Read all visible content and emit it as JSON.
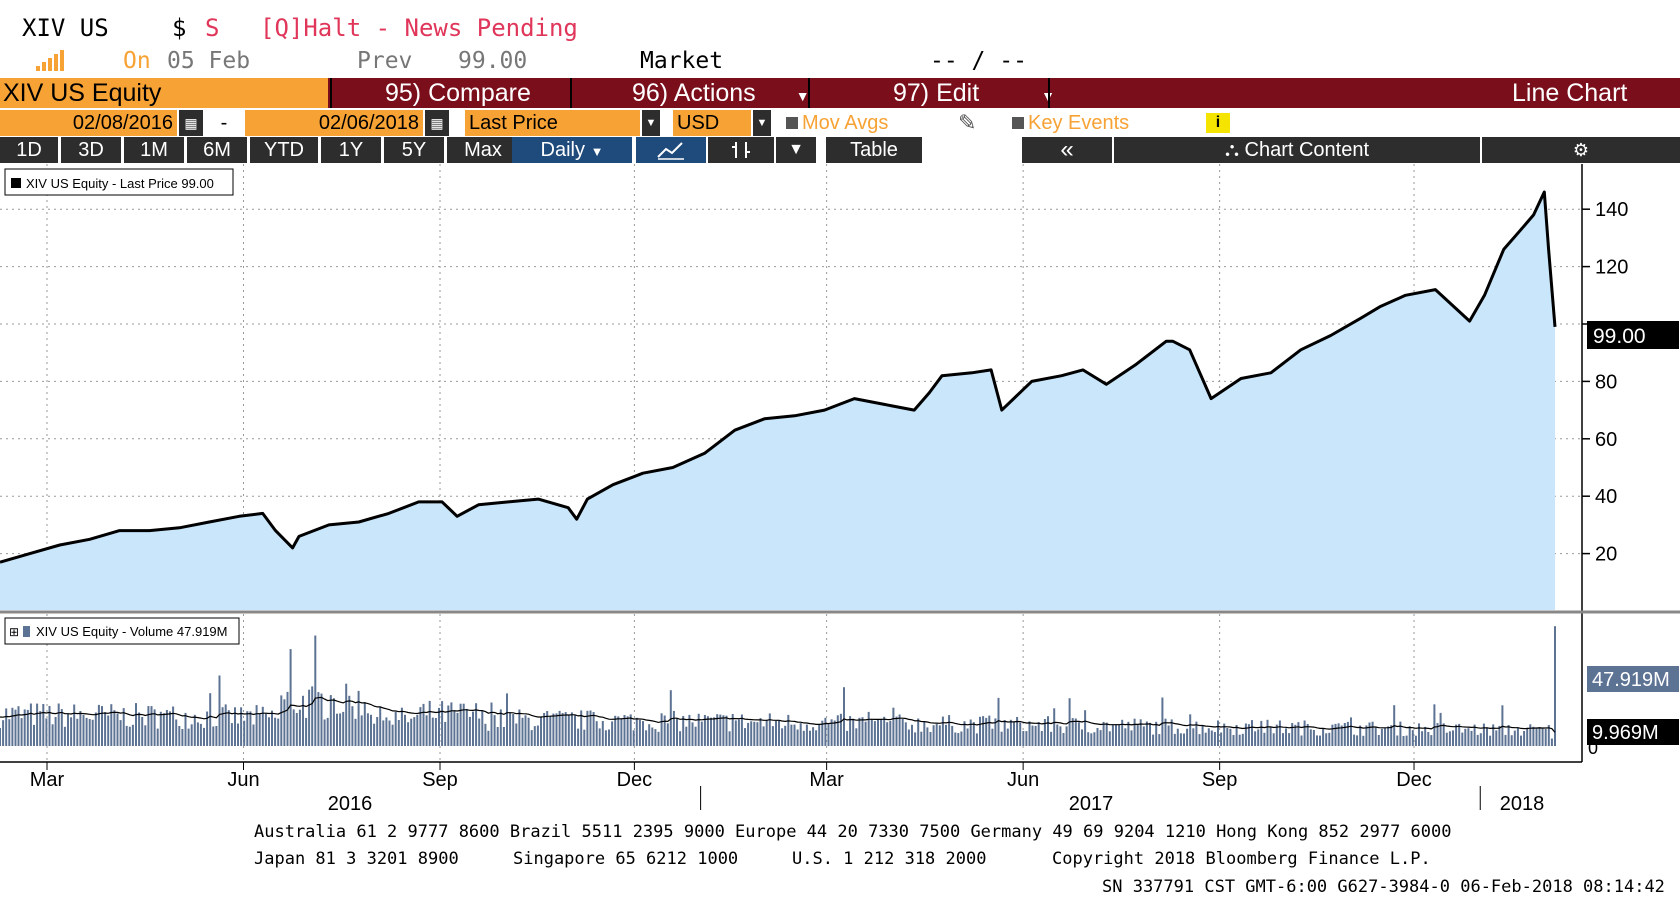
{
  "header": {
    "ticker": "XIV US",
    "currency_symbol": "$",
    "status_flag": "S",
    "halt_message": "[Q]Halt - News Pending",
    "on_label": "On",
    "on_date": "05 Feb",
    "prev_label": "Prev",
    "prev_value": "99.00",
    "market_label": "Market",
    "market_value": "-- / --"
  },
  "menubar": {
    "security": "XIV US Equity",
    "compare": "95) Compare",
    "actions": "96) Actions",
    "edit": "97) Edit",
    "chart_type": "Line Chart"
  },
  "daterow": {
    "start_date": "02/08/2016",
    "dash": "-",
    "end_date": "02/06/2018",
    "field": "Last Price",
    "currency": "USD",
    "mov_avgs": "Mov Avgs",
    "key_events": "Key Events",
    "info": "i"
  },
  "periods": [
    "1D",
    "3D",
    "1M",
    "6M",
    "YTD",
    "1Y",
    "5Y",
    "Max"
  ],
  "frequency": "Daily",
  "toolbar": {
    "table": "Table",
    "back": "«",
    "chart_content": "Chart Content"
  },
  "colors": {
    "area_fill": "#c9e6fb",
    "price_line": "#000000",
    "menubar": "#7a0e1b",
    "orange": "#f7a234",
    "volume_bar": "#5d7394",
    "active_tab": "#1f4a7c"
  },
  "chart_data": [
    {
      "type": "area",
      "legend": "XIV US Equity - Last Price 99.00",
      "ylim": [
        0,
        150
      ],
      "yticks": [
        20,
        40,
        60,
        80,
        100,
        120,
        140
      ],
      "ytick_labels": [
        "20",
        "40",
        "60",
        "80",
        "",
        "120",
        "140"
      ],
      "last_value_label": "99.00",
      "grid": true,
      "x": [
        "2016-02-08",
        "2016-02-22",
        "2016-03-07",
        "2016-03-21",
        "2016-04-04",
        "2016-04-18",
        "2016-05-02",
        "2016-05-16",
        "2016-05-30",
        "2016-06-10",
        "2016-06-16",
        "2016-06-24",
        "2016-06-27",
        "2016-07-11",
        "2016-07-25",
        "2016-08-08",
        "2016-08-22",
        "2016-09-02",
        "2016-09-09",
        "2016-09-19",
        "2016-10-03",
        "2016-10-17",
        "2016-10-31",
        "2016-11-04",
        "2016-11-09",
        "2016-11-21",
        "2016-12-05",
        "2016-12-19",
        "2017-01-03",
        "2017-01-17",
        "2017-01-31",
        "2017-02-14",
        "2017-02-28",
        "2017-03-14",
        "2017-03-21",
        "2017-03-28",
        "2017-04-11",
        "2017-04-18",
        "2017-04-24",
        "2017-05-08",
        "2017-05-17",
        "2017-05-22",
        "2017-06-05",
        "2017-06-19",
        "2017-06-29",
        "2017-07-10",
        "2017-07-24",
        "2017-08-07",
        "2017-08-10",
        "2017-08-18",
        "2017-08-28",
        "2017-09-11",
        "2017-09-25",
        "2017-10-09",
        "2017-10-23",
        "2017-11-06",
        "2017-11-15",
        "2017-11-27",
        "2017-12-11",
        "2017-12-27",
        "2018-01-03",
        "2018-01-12",
        "2018-01-19",
        "2018-01-26",
        "2018-01-31",
        "2018-02-02",
        "2018-02-05"
      ],
      "values": [
        17,
        20,
        23,
        25,
        28,
        28,
        29,
        31,
        33,
        34,
        28,
        22,
        26,
        30,
        31,
        34,
        38,
        38,
        33,
        37,
        38,
        39,
        36,
        32,
        39,
        44,
        48,
        50,
        55,
        63,
        67,
        68,
        70,
        74,
        73,
        72,
        70,
        76,
        82,
        83,
        84,
        70,
        80,
        82,
        84,
        79,
        86,
        94,
        94,
        91,
        74,
        81,
        83,
        91,
        96,
        102,
        106,
        110,
        112,
        101,
        110,
        126,
        132,
        138,
        146,
        126,
        99
      ]
    },
    {
      "type": "bar",
      "legend": "XIV US Equity - Volume 47.919M",
      "ylim": [
        0,
        30
      ],
      "ytick_labels": [
        "0"
      ],
      "last_volume_label": "47.919M",
      "moving_avg_label": "9.969M",
      "moving_avg_value": 9.969,
      "last_volume_value": 47.919,
      "grid": true
    }
  ],
  "xaxis": {
    "months": [
      "Mar",
      "Jun",
      "Sep",
      "Dec",
      "Mar",
      "Jun",
      "Sep",
      "Dec"
    ],
    "month_dates": [
      "2016-03-01",
      "2016-06-01",
      "2016-09-01",
      "2016-12-01",
      "2017-03-01",
      "2017-06-01",
      "2017-09-01",
      "2017-12-01"
    ],
    "years": [
      "2016",
      "2017",
      "2018"
    ]
  },
  "footer": {
    "line1": "Australia 61 2 9777 8600 Brazil 5511 2395 9000 Europe 44 20 7330 7500 Germany 49 69 9204 1210 Hong Kong 852 2977 6000",
    "line2_japan": "Japan 81 3 3201 8900",
    "line2_singapore": "Singapore 65 6212 1000",
    "line2_us": "U.S. 1 212 318 2000",
    "line2_copyright": "Copyright 2018 Bloomberg Finance L.P.",
    "line3": "SN 337791 CST  GMT-6:00 G627-3984-0 06-Feb-2018 08:14:42"
  }
}
